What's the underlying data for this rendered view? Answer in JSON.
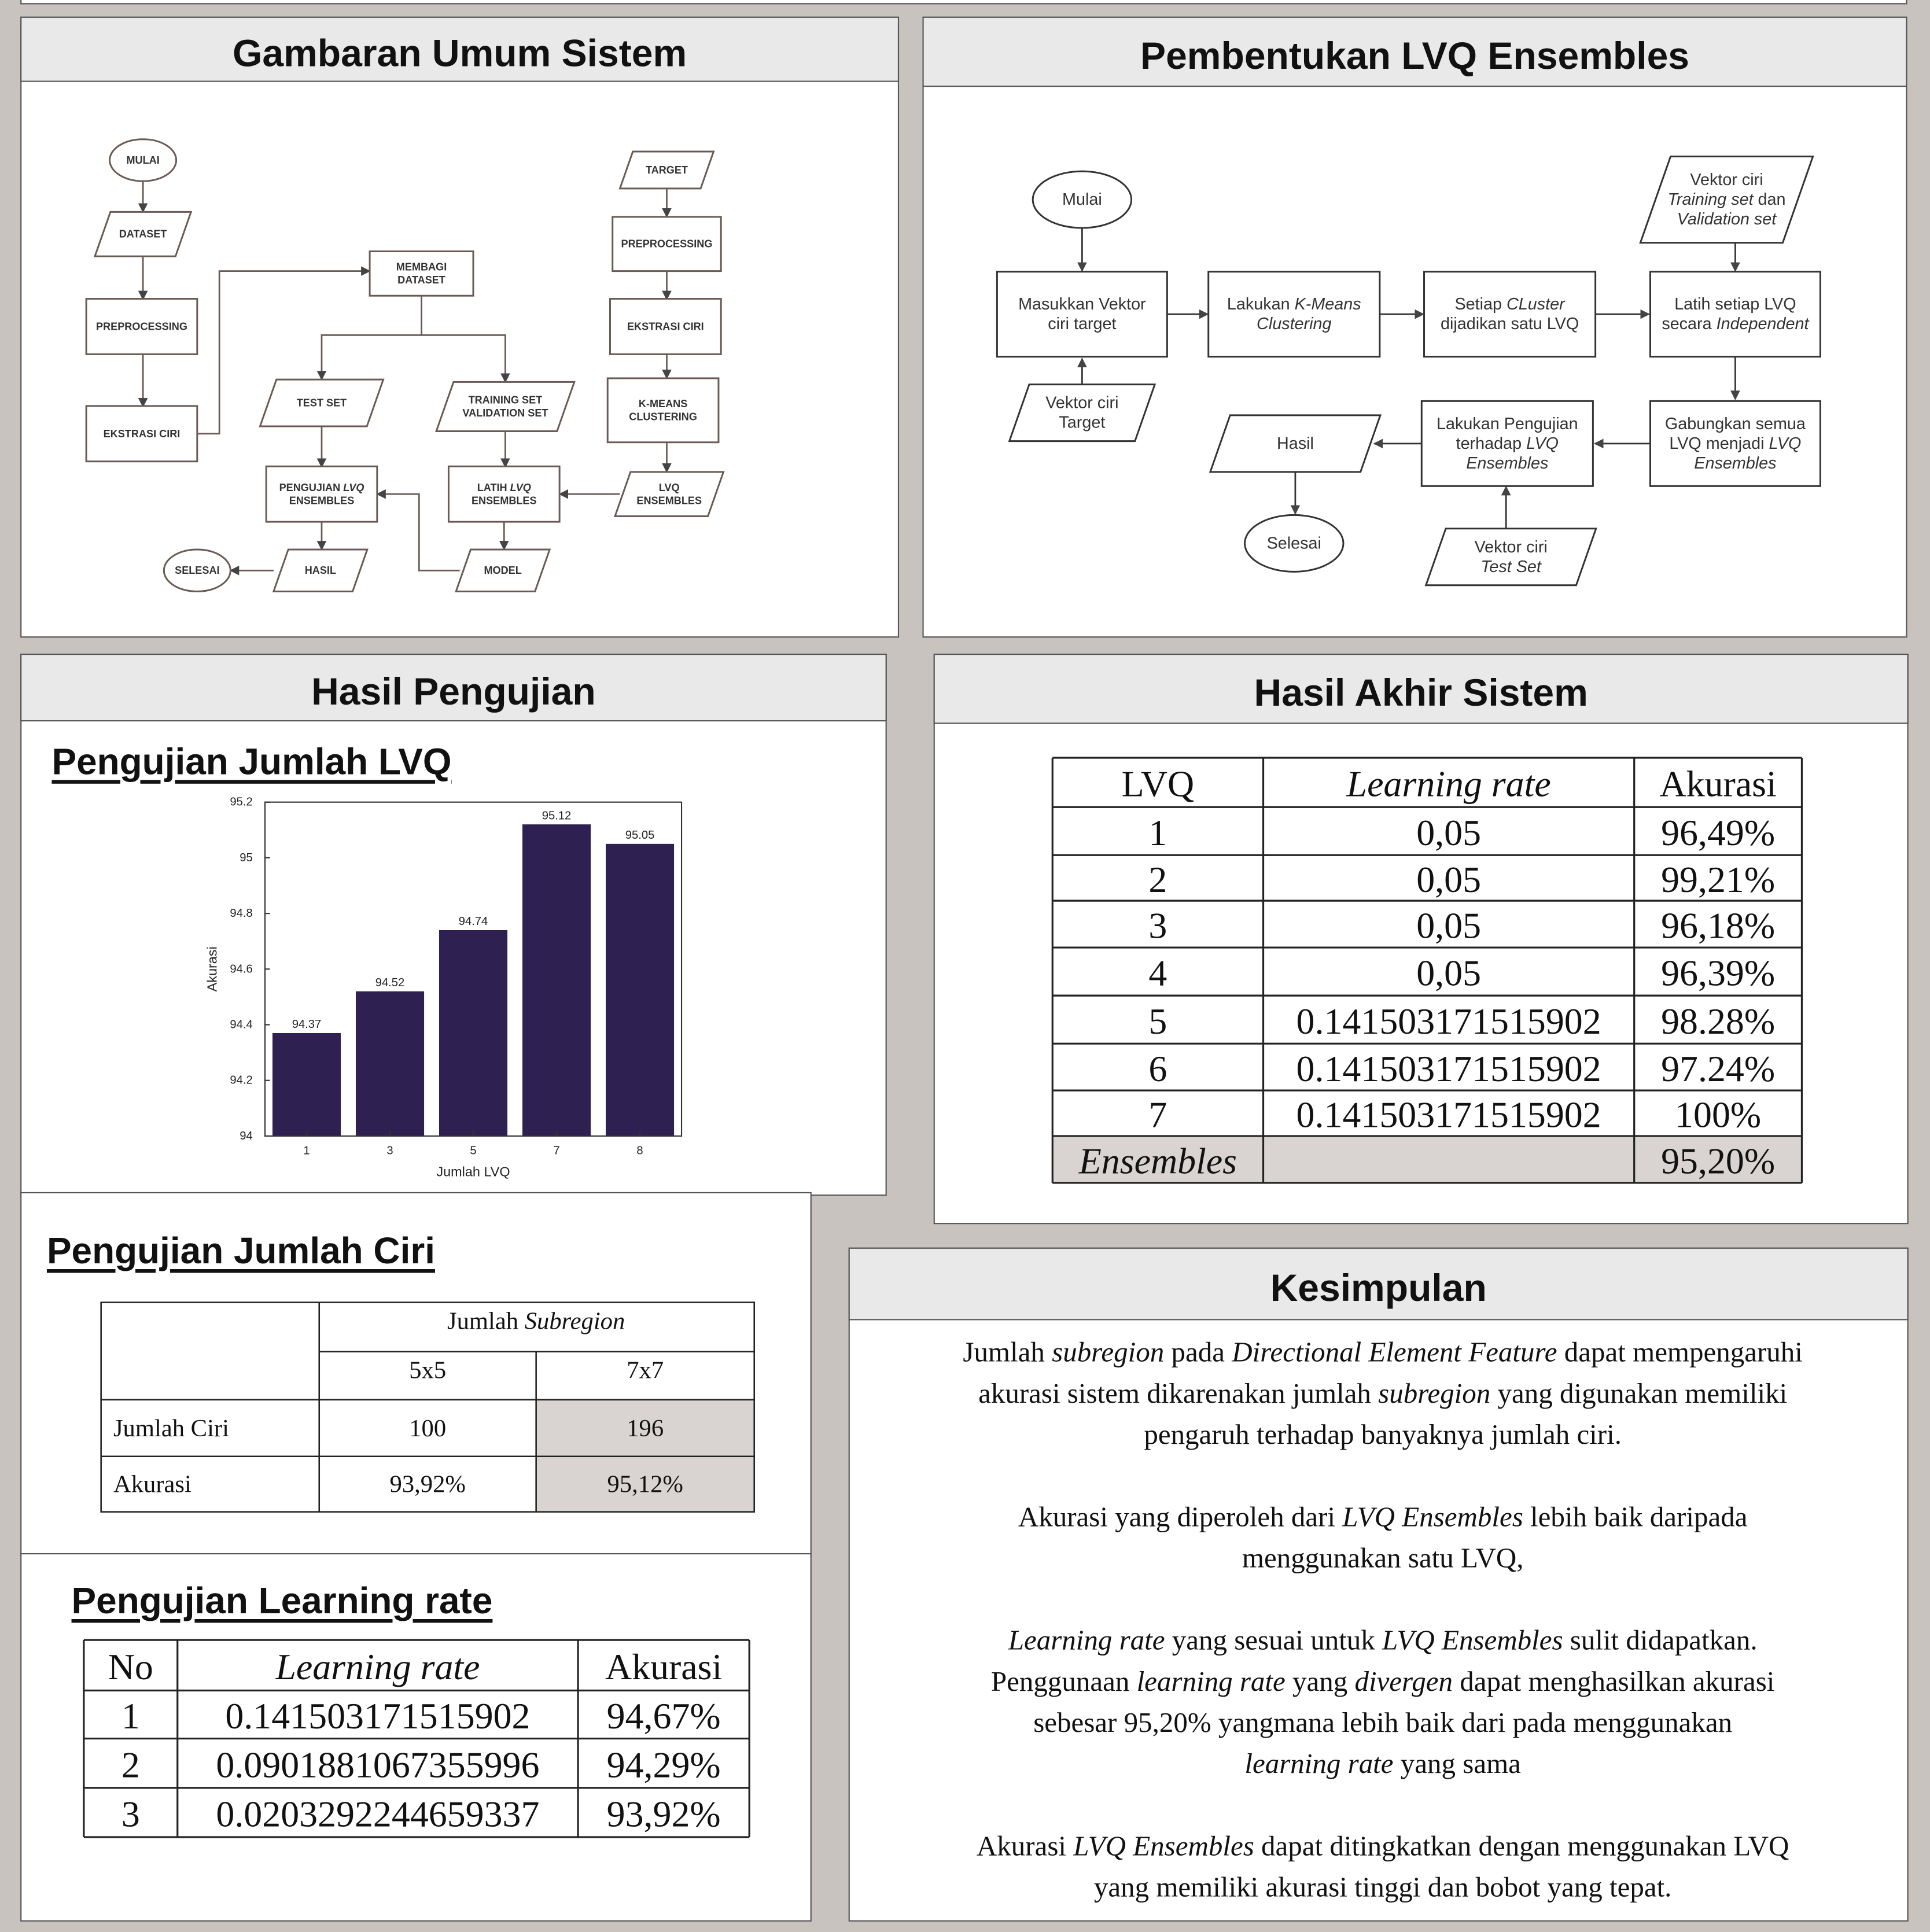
{
  "panels": {
    "overview": {
      "title": "Gambaran Umum Sistem",
      "nodes": [
        [
          [
            "MULAI"
          ]
        ],
        [
          [
            "DATASET"
          ]
        ],
        [
          [
            "PREPROCESSING"
          ]
        ],
        [
          [
            "EKSTRASI CIRI"
          ]
        ],
        [
          [
            "MEMBAGI"
          ],
          [
            "DATASET"
          ]
        ],
        [
          [
            "TEST SET"
          ]
        ],
        [
          [
            "TRAINING SET"
          ],
          [
            "VALIDATION SET"
          ]
        ],
        [
          [
            "PENGUJIAN ",
            {
              "em": "LVQ"
            }
          ],
          [
            "ENSEMBLES"
          ]
        ],
        [
          [
            "LATIH ",
            {
              "em": "LVQ"
            }
          ],
          [
            "ENSEMBLES"
          ]
        ],
        [
          [
            "MODEL"
          ]
        ],
        [
          [
            "HASIL"
          ]
        ],
        [
          [
            "SELESAI"
          ]
        ],
        [
          [
            "TARGET"
          ]
        ],
        [
          [
            "PREPROCESSING"
          ]
        ],
        [
          [
            "EKSTRASI CIRI"
          ]
        ],
        [
          [
            "K-MEANS"
          ],
          [
            "CLUSTERING"
          ]
        ],
        [
          [
            "LVQ"
          ],
          [
            "ENSEMBLES"
          ]
        ]
      ]
    },
    "lvq_ensembles": {
      "title": "Pembentukan LVQ Ensembles",
      "nodes": [
        [
          [
            "Mulai"
          ]
        ],
        [
          [
            "Masukkan Vektor"
          ],
          [
            "ciri target"
          ]
        ],
        [
          [
            "Vektor ciri"
          ],
          [
            "Target"
          ]
        ],
        [
          [
            "Lakukan ",
            {
              "em": "K-Means"
            }
          ],
          [
            {
              "em": "Clustering"
            }
          ]
        ],
        [
          [
            "Setiap ",
            {
              "em": "CLuster"
            }
          ],
          [
            "dijadikan satu LVQ"
          ]
        ],
        [
          [
            "Latih setiap LVQ"
          ],
          [
            "secara ",
            {
              "em": "Independent"
            }
          ]
        ],
        [
          [
            "Vektor ciri"
          ],
          [
            {
              "em": "Training set"
            },
            " dan"
          ],
          [
            {
              "em": "Validation set"
            }
          ]
        ],
        [
          [
            "Gabungkan semua"
          ],
          [
            "LVQ menjadi ",
            {
              "em": "LVQ"
            }
          ],
          [
            {
              "em": "Ensembles"
            }
          ]
        ],
        [
          [
            "Lakukan Pengujian"
          ],
          [
            "terhadap ",
            {
              "em": "LVQ"
            }
          ],
          [
            {
              "em": "Ensembles"
            }
          ]
        ],
        [
          [
            "Hasil"
          ]
        ],
        [
          [
            "Selesai"
          ]
        ],
        [
          [
            "Vektor ciri"
          ],
          [
            {
              "em": "Test Set"
            }
          ]
        ]
      ]
    },
    "test_results": {
      "title": "Hasil Pengujian"
    },
    "feature_test": {
      "title": "Pengujian Jumlah Ciri",
      "group": [
        "Jumlah ",
        {
          "em": "Subregion"
        }
      ],
      "columns": [
        "5x5",
        "7x7"
      ],
      "rows": [
        [
          "Jumlah Ciri",
          "100",
          "196"
        ],
        [
          "Akurasi",
          "93,92%",
          "95,12%"
        ]
      ]
    },
    "lr_test": {
      "title": "Pengujian Learning rate",
      "columns": [
        "No",
        {
          "em": "Learning rate"
        },
        "Akurasi"
      ],
      "rows": [
        [
          "1",
          "0.141503171515902",
          "94,67%"
        ],
        [
          "2",
          "0.0901881067355996",
          "94,29%"
        ],
        [
          "3",
          "0.0203292244659337",
          "93,92%"
        ]
      ]
    },
    "final_results": {
      "title": "Hasil Akhir Sistem",
      "columns": [
        "LVQ",
        {
          "em": "Learning rate"
        },
        "Akurasi"
      ],
      "rows": [
        [
          "1",
          "0,05",
          "96,49%"
        ],
        [
          "2",
          "0,05",
          "99,21%"
        ],
        [
          "3",
          "0,05",
          "96,18%"
        ],
        [
          "4",
          "0,05",
          "96,39%"
        ],
        [
          "5",
          "0.141503171515902",
          "98.28%"
        ],
        [
          "6",
          "0.141503171515902",
          "97.24%"
        ],
        [
          "7",
          "0.141503171515902",
          "100%"
        ]
      ],
      "ensembles": {
        "label": {
          "em": "Ensembles"
        },
        "accuracy": "95,20%"
      }
    },
    "conclusion": {
      "title": "Kesimpulan",
      "paragraphs": [
        [
          [
            "Jumlah ",
            {
              "em": "subregion"
            },
            " pada ",
            {
              "em": "Directional Element Feature"
            },
            " dapat mempengaruhi"
          ],
          [
            "akurasi sistem dikarenakan jumlah ",
            {
              "em": "subregion"
            },
            " yang digunakan memiliki"
          ],
          [
            "pengaruh terhadap banyaknya jumlah ciri."
          ]
        ],
        [
          [
            "Akurasi yang diperoleh dari ",
            {
              "em": "LVQ Ensembles"
            },
            " lebih baik daripada"
          ],
          [
            "menggunakan satu LVQ,"
          ]
        ],
        [
          [
            {
              "em": "Learning rate"
            },
            " yang sesuai untuk ",
            {
              "em": "LVQ Ensembles"
            },
            " sulit didapatkan."
          ],
          [
            "Penggunaan ",
            {
              "em": "learning rate"
            },
            " yang ",
            {
              "em": "divergen"
            },
            " dapat menghasilkan akurasi"
          ],
          [
            "sebesar 95,20% yangmana lebih baik dari pada menggunakan"
          ],
          [
            {
              "em": "learning rate"
            },
            " yang sama"
          ]
        ],
        [
          [
            "Akurasi ",
            {
              "em": "LVQ Ensembles"
            },
            " dapat ditingkatkan dengan menggunakan LVQ"
          ],
          [
            "yang memiliki akurasi tinggi dan bobot yang tepat."
          ]
        ]
      ]
    }
  },
  "chart_data": {
    "type": "bar",
    "title": "Pengujian Jumlah LVQ",
    "categories": [
      "1",
      "3",
      "5",
      "7",
      "8"
    ],
    "values": [
      94.37,
      94.52,
      94.74,
      95.12,
      95.05
    ],
    "color": "#2e2152",
    "xlabel": "Jumlah LVQ",
    "ylabel": "Akurasi",
    "ylim": [
      94,
      95.2
    ],
    "yticks": [
      94,
      94.2,
      94.4,
      94.6,
      94.8,
      95,
      95.2
    ]
  }
}
